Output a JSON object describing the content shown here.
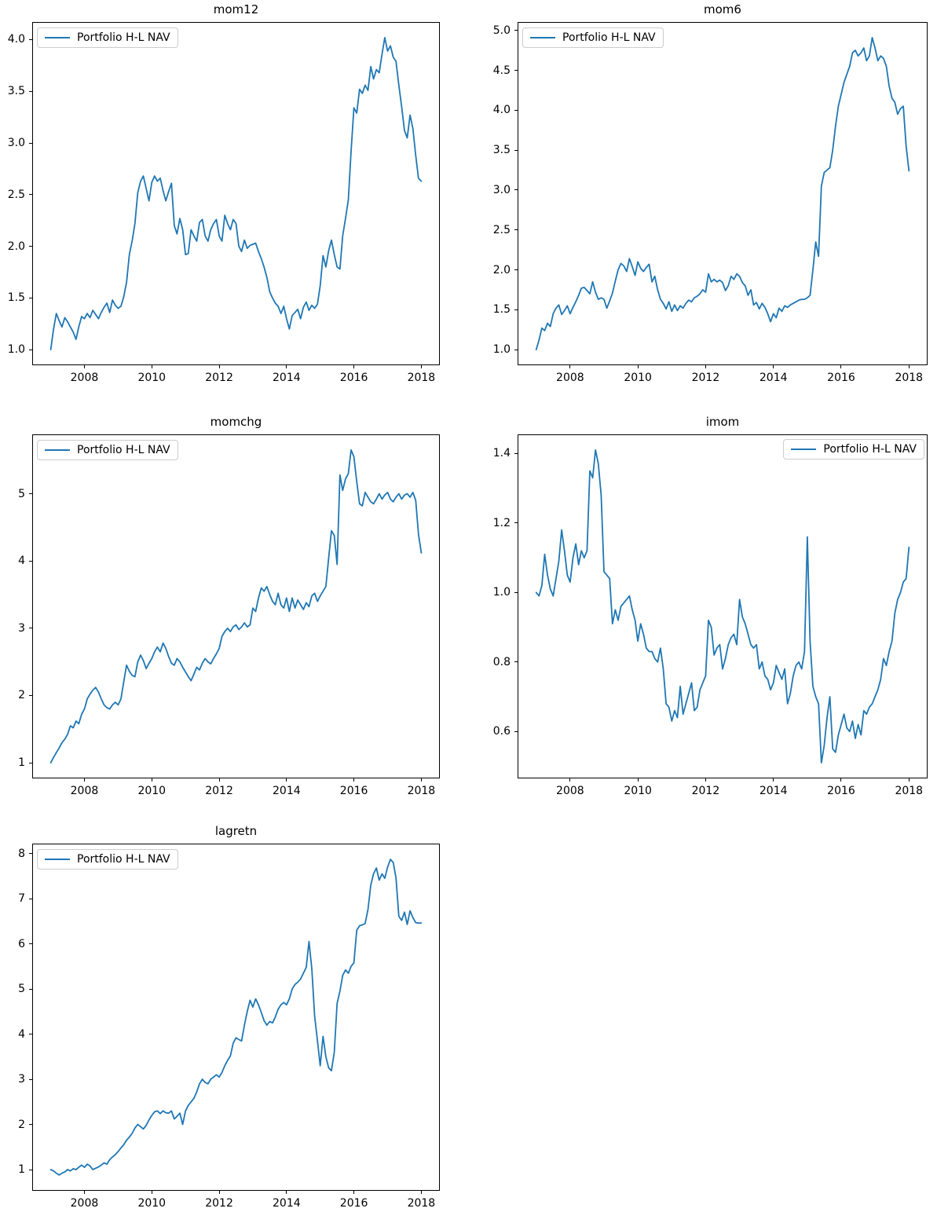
{
  "page": {
    "background_color": "#ffffff"
  },
  "chart_data": [
    {
      "type": "line",
      "title": "mom12",
      "legend": [
        "Portfolio H-L NAV"
      ],
      "legend_loc": "upper left",
      "line_color": "#1f77b4",
      "grid": false,
      "x_start_year": 2007.0,
      "x_step_years": 0.0833333,
      "xticks": [
        2008,
        2010,
        2012,
        2014,
        2016,
        2018
      ],
      "xtick_labels": [
        "2008",
        "2010",
        "2012",
        "2014",
        "2016",
        "2018"
      ],
      "yticks": [
        1.0,
        1.5,
        2.0,
        2.5,
        3.0,
        3.5,
        4.0
      ],
      "ytick_labels": [
        "1.0",
        "1.5",
        "2.0",
        "2.5",
        "3.0",
        "3.5",
        "4.0"
      ],
      "values": [
        1.0,
        1.2,
        1.35,
        1.28,
        1.22,
        1.31,
        1.27,
        1.22,
        1.17,
        1.1,
        1.22,
        1.32,
        1.3,
        1.35,
        1.31,
        1.38,
        1.34,
        1.3,
        1.36,
        1.41,
        1.45,
        1.36,
        1.48,
        1.43,
        1.4,
        1.42,
        1.51,
        1.65,
        1.92,
        2.05,
        2.22,
        2.52,
        2.63,
        2.68,
        2.56,
        2.44,
        2.62,
        2.68,
        2.63,
        2.66,
        2.54,
        2.44,
        2.53,
        2.61,
        2.2,
        2.12,
        2.27,
        2.16,
        1.92,
        1.93,
        2.16,
        2.1,
        2.05,
        2.23,
        2.26,
        2.1,
        2.05,
        2.16,
        2.22,
        2.26,
        2.1,
        2.05,
        2.3,
        2.22,
        2.16,
        2.26,
        2.22,
        2.0,
        1.95,
        2.06,
        1.98,
        2.01,
        2.02,
        2.03,
        1.95,
        1.88,
        1.8,
        1.7,
        1.56,
        1.5,
        1.45,
        1.42,
        1.35,
        1.42,
        1.3,
        1.2,
        1.33,
        1.36,
        1.39,
        1.3,
        1.41,
        1.46,
        1.38,
        1.43,
        1.4,
        1.44,
        1.62,
        1.91,
        1.8,
        1.96,
        2.06,
        1.92,
        1.8,
        1.78,
        2.1,
        2.27,
        2.45,
        2.92,
        3.34,
        3.29,
        3.52,
        3.48,
        3.56,
        3.51,
        3.74,
        3.62,
        3.71,
        3.68,
        3.86,
        4.02,
        3.89,
        3.94,
        3.83,
        3.79,
        3.56,
        3.35,
        3.12,
        3.05,
        3.27,
        3.14,
        2.88,
        2.66,
        2.63
      ]
    },
    {
      "type": "line",
      "title": "mom6",
      "legend": [
        "Portfolio H-L NAV"
      ],
      "legend_loc": "upper left",
      "line_color": "#1f77b4",
      "grid": false,
      "x_start_year": 2007.0,
      "x_step_years": 0.0833333,
      "xticks": [
        2008,
        2010,
        2012,
        2014,
        2016,
        2018
      ],
      "xtick_labels": [
        "2008",
        "2010",
        "2012",
        "2014",
        "2016",
        "2018"
      ],
      "yticks": [
        1.0,
        1.5,
        2.0,
        2.5,
        3.0,
        3.5,
        4.0,
        4.5,
        5.0
      ],
      "ytick_labels": [
        "1.0",
        "1.5",
        "2.0",
        "2.5",
        "3.0",
        "3.5",
        "4.0",
        "4.5",
        "5.0"
      ],
      "values": [
        1.0,
        1.12,
        1.27,
        1.24,
        1.33,
        1.29,
        1.45,
        1.52,
        1.56,
        1.44,
        1.49,
        1.55,
        1.45,
        1.53,
        1.6,
        1.68,
        1.77,
        1.78,
        1.74,
        1.7,
        1.85,
        1.72,
        1.63,
        1.65,
        1.63,
        1.52,
        1.61,
        1.71,
        1.86,
        2.0,
        2.08,
        2.05,
        1.98,
        2.14,
        2.04,
        1.93,
        2.1,
        2.02,
        1.98,
        2.03,
        2.07,
        1.85,
        1.92,
        1.75,
        1.63,
        1.58,
        1.51,
        1.6,
        1.48,
        1.56,
        1.49,
        1.55,
        1.52,
        1.58,
        1.62,
        1.6,
        1.65,
        1.67,
        1.7,
        1.75,
        1.72,
        1.95,
        1.85,
        1.88,
        1.85,
        1.87,
        1.84,
        1.74,
        1.8,
        1.92,
        1.88,
        1.95,
        1.92,
        1.84,
        1.8,
        1.68,
        1.75,
        1.56,
        1.59,
        1.51,
        1.58,
        1.53,
        1.45,
        1.35,
        1.45,
        1.4,
        1.52,
        1.48,
        1.55,
        1.53,
        1.56,
        1.58,
        1.6,
        1.62,
        1.63,
        1.63,
        1.65,
        1.68,
        2.0,
        2.35,
        2.17,
        3.05,
        3.22,
        3.25,
        3.28,
        3.5,
        3.8,
        4.05,
        4.2,
        4.35,
        4.45,
        4.55,
        4.72,
        4.75,
        4.68,
        4.72,
        4.78,
        4.62,
        4.68,
        4.91,
        4.78,
        4.62,
        4.68,
        4.65,
        4.55,
        4.3,
        4.15,
        4.1,
        3.95,
        4.02,
        4.05,
        3.55,
        3.24
      ]
    },
    {
      "type": "line",
      "title": "momchg",
      "legend": [
        "Portfolio H-L NAV"
      ],
      "legend_loc": "upper left",
      "line_color": "#1f77b4",
      "grid": false,
      "x_start_year": 2007.0,
      "x_step_years": 0.0833333,
      "xticks": [
        2008,
        2010,
        2012,
        2014,
        2016,
        2018
      ],
      "xtick_labels": [
        "2008",
        "2010",
        "2012",
        "2014",
        "2016",
        "2018"
      ],
      "yticks": [
        1,
        2,
        3,
        4,
        5
      ],
      "ytick_labels": [
        "1",
        "2",
        "3",
        "4",
        "5"
      ],
      "values": [
        1.0,
        1.08,
        1.15,
        1.22,
        1.3,
        1.35,
        1.42,
        1.55,
        1.52,
        1.62,
        1.58,
        1.72,
        1.8,
        1.95,
        2.02,
        2.08,
        2.12,
        2.05,
        1.95,
        1.86,
        1.82,
        1.8,
        1.86,
        1.9,
        1.86,
        1.95,
        2.2,
        2.45,
        2.36,
        2.3,
        2.28,
        2.5,
        2.6,
        2.52,
        2.4,
        2.48,
        2.55,
        2.65,
        2.72,
        2.65,
        2.78,
        2.7,
        2.58,
        2.48,
        2.45,
        2.55,
        2.5,
        2.42,
        2.35,
        2.28,
        2.22,
        2.32,
        2.42,
        2.38,
        2.48,
        2.55,
        2.5,
        2.47,
        2.55,
        2.62,
        2.7,
        2.88,
        2.95,
        3.0,
        2.95,
        3.02,
        3.05,
        2.98,
        3.02,
        3.08,
        3.02,
        3.05,
        3.3,
        3.25,
        3.45,
        3.6,
        3.55,
        3.62,
        3.5,
        3.4,
        3.35,
        3.52,
        3.35,
        3.3,
        3.45,
        3.25,
        3.45,
        3.3,
        3.42,
        3.35,
        3.28,
        3.38,
        3.32,
        3.48,
        3.52,
        3.4,
        3.48,
        3.55,
        3.62,
        4.05,
        4.45,
        4.38,
        3.95,
        5.28,
        5.05,
        5.22,
        5.3,
        5.65,
        5.55,
        5.18,
        4.85,
        4.82,
        5.02,
        4.95,
        4.88,
        4.85,
        4.92,
        5.0,
        4.92,
        4.98,
        5.02,
        4.92,
        4.88,
        4.95,
        5.0,
        4.92,
        4.98,
        5.0,
        4.95,
        5.02,
        4.9,
        4.4,
        4.12
      ]
    },
    {
      "type": "line",
      "title": "imom",
      "legend": [
        "Portfolio H-L NAV"
      ],
      "legend_loc": "upper right",
      "line_color": "#1f77b4",
      "grid": false,
      "x_start_year": 2007.0,
      "x_step_years": 0.0833333,
      "xticks": [
        2008,
        2010,
        2012,
        2014,
        2016,
        2018
      ],
      "xtick_labels": [
        "2008",
        "2010",
        "2012",
        "2014",
        "2016",
        "2018"
      ],
      "yticks": [
        0.6,
        0.8,
        1.0,
        1.2,
        1.4
      ],
      "ytick_labels": [
        "0.6",
        "0.8",
        "1.0",
        "1.2",
        "1.4"
      ],
      "values": [
        1.0,
        0.99,
        1.02,
        1.11,
        1.05,
        1.01,
        0.99,
        1.04,
        1.09,
        1.18,
        1.12,
        1.05,
        1.03,
        1.1,
        1.14,
        1.08,
        1.12,
        1.1,
        1.12,
        1.35,
        1.33,
        1.41,
        1.37,
        1.28,
        1.06,
        1.05,
        1.04,
        0.91,
        0.95,
        0.92,
        0.96,
        0.97,
        0.98,
        0.99,
        0.95,
        0.92,
        0.86,
        0.91,
        0.88,
        0.84,
        0.83,
        0.83,
        0.81,
        0.8,
        0.84,
        0.78,
        0.68,
        0.67,
        0.63,
        0.66,
        0.64,
        0.73,
        0.65,
        0.68,
        0.71,
        0.74,
        0.66,
        0.67,
        0.72,
        0.74,
        0.76,
        0.92,
        0.9,
        0.82,
        0.84,
        0.85,
        0.78,
        0.81,
        0.85,
        0.87,
        0.88,
        0.85,
        0.98,
        0.93,
        0.91,
        0.88,
        0.85,
        0.84,
        0.85,
        0.78,
        0.8,
        0.76,
        0.75,
        0.72,
        0.74,
        0.79,
        0.77,
        0.75,
        0.78,
        0.68,
        0.71,
        0.76,
        0.79,
        0.8,
        0.78,
        0.83,
        1.16,
        0.86,
        0.73,
        0.7,
        0.68,
        0.51,
        0.56,
        0.64,
        0.7,
        0.55,
        0.54,
        0.59,
        0.62,
        0.65,
        0.61,
        0.6,
        0.63,
        0.58,
        0.62,
        0.59,
        0.66,
        0.65,
        0.67,
        0.68,
        0.7,
        0.72,
        0.75,
        0.81,
        0.79,
        0.83,
        0.86,
        0.94,
        0.98,
        1.0,
        1.03,
        1.04,
        1.13
      ]
    },
    {
      "type": "line",
      "title": "lagretn",
      "legend": [
        "Portfolio H-L NAV"
      ],
      "legend_loc": "upper left",
      "line_color": "#1f77b4",
      "grid": false,
      "x_start_year": 2007.0,
      "x_step_years": 0.0833333,
      "xticks": [
        2008,
        2010,
        2012,
        2014,
        2016,
        2018
      ],
      "xtick_labels": [
        "2008",
        "2010",
        "2012",
        "2014",
        "2016",
        "2018"
      ],
      "yticks": [
        1,
        2,
        3,
        4,
        5,
        6,
        7,
        8
      ],
      "ytick_labels": [
        "1",
        "2",
        "3",
        "4",
        "5",
        "6",
        "7",
        "8"
      ],
      "values": [
        1.0,
        0.97,
        0.92,
        0.88,
        0.92,
        0.95,
        1.0,
        0.97,
        1.02,
        1.0,
        1.05,
        1.1,
        1.05,
        1.12,
        1.08,
        1.0,
        1.03,
        1.06,
        1.1,
        1.15,
        1.12,
        1.22,
        1.28,
        1.33,
        1.4,
        1.48,
        1.55,
        1.65,
        1.72,
        1.8,
        1.92,
        2.0,
        1.95,
        1.9,
        1.98,
        2.1,
        2.2,
        2.28,
        2.3,
        2.24,
        2.3,
        2.26,
        2.25,
        2.3,
        2.12,
        2.18,
        2.25,
        2.0,
        2.3,
        2.42,
        2.5,
        2.58,
        2.72,
        2.9,
        3.0,
        2.93,
        2.9,
        3.0,
        3.05,
        3.1,
        3.05,
        3.15,
        3.3,
        3.42,
        3.52,
        3.8,
        3.92,
        3.88,
        3.85,
        4.2,
        4.5,
        4.75,
        4.6,
        4.78,
        4.65,
        4.48,
        4.3,
        4.2,
        4.28,
        4.25,
        4.38,
        4.55,
        4.65,
        4.7,
        4.65,
        4.78,
        5.0,
        5.1,
        5.15,
        5.22,
        5.35,
        5.48,
        6.05,
        5.45,
        4.4,
        3.85,
        3.3,
        3.95,
        3.5,
        3.25,
        3.19,
        3.6,
        4.68,
        4.95,
        5.3,
        5.42,
        5.35,
        5.5,
        5.58,
        6.3,
        6.4,
        6.42,
        6.45,
        6.76,
        7.3,
        7.55,
        7.68,
        7.41,
        7.55,
        7.45,
        7.7,
        7.87,
        7.8,
        7.46,
        6.61,
        6.52,
        6.7,
        6.43,
        6.73,
        6.58,
        6.47,
        6.46,
        6.46
      ]
    }
  ]
}
